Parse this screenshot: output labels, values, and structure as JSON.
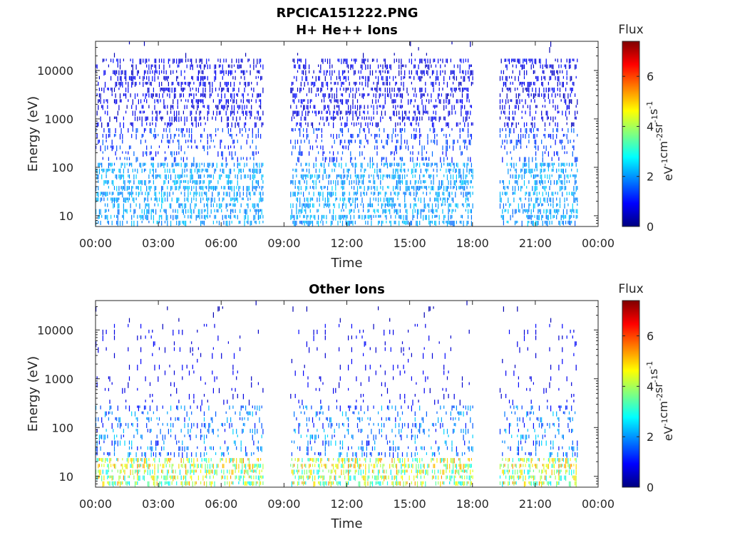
{
  "figure_title": "RPCICA151222.PNG",
  "chart_data": [
    {
      "type": "heatmap",
      "title": "H+ He++ Ions",
      "xlabel": "Time",
      "ylabel": "Energy (eV)",
      "x_ticks": [
        "00:00",
        "03:00",
        "06:00",
        "09:00",
        "12:00",
        "15:00",
        "18:00",
        "21:00",
        "00:00"
      ],
      "x_range_hours": [
        0,
        24
      ],
      "y_ticks": [
        10,
        100,
        1000,
        10000
      ],
      "y_tick_labels": [
        "10",
        "100",
        "1000",
        "10000"
      ],
      "y_scale": "log",
      "y_range_eV": [
        6,
        40000
      ],
      "colorbar": {
        "title": "Flux",
        "unit_parts": [
          "eV",
          "-1",
          "cm",
          "-2",
          "sr",
          "-1",
          "s",
          "-1"
        ],
        "ticks": [
          0,
          2,
          4,
          6
        ],
        "range": [
          0,
          7.4
        ],
        "colormap": "jet"
      },
      "data_intervals_hours": [
        [
          0.0,
          8.0
        ],
        [
          9.3,
          18.0
        ],
        [
          19.3,
          23.0
        ]
      ],
      "grid": false
    },
    {
      "type": "heatmap",
      "title": "Other Ions",
      "xlabel": "Time",
      "ylabel": "Energy (eV)",
      "x_ticks": [
        "00:00",
        "03:00",
        "06:00",
        "09:00",
        "12:00",
        "15:00",
        "18:00",
        "21:00",
        "00:00"
      ],
      "x_range_hours": [
        0,
        24
      ],
      "y_ticks": [
        10,
        100,
        1000,
        10000
      ],
      "y_tick_labels": [
        "10",
        "100",
        "1000",
        "10000"
      ],
      "y_scale": "log",
      "y_range_eV": [
        6,
        40000
      ],
      "colorbar": {
        "title": "Flux",
        "unit_parts": [
          "eV",
          "-1",
          "cm",
          "-2",
          "sr",
          "-1",
          "s",
          "-1"
        ],
        "ticks": [
          0,
          2,
          4,
          6
        ],
        "range": [
          0,
          7.4
        ],
        "colormap": "jet"
      },
      "data_intervals_hours": [
        [
          0.0,
          8.0
        ],
        [
          9.3,
          18.0
        ],
        [
          19.3,
          23.0
        ]
      ],
      "grid": false
    }
  ]
}
